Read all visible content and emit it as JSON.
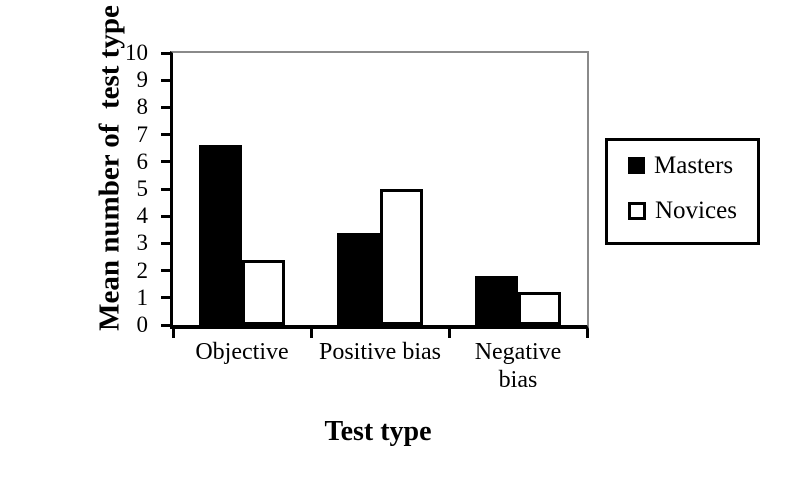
{
  "figure": {
    "background": "#ffffff",
    "frame_color": "#8a8a8a",
    "axis_color": "#000000",
    "bar_border_color": "#000000"
  },
  "chart_data": {
    "type": "bar",
    "xlabel": "Test type",
    "ylabel": "Mean number of  test type",
    "categories": [
      "Objective",
      "Positive bias",
      "Negative bias"
    ],
    "series": [
      {
        "name": "Masters",
        "fill": "#000000",
        "swatch": "filled-black-square",
        "values": [
          6.6,
          3.4,
          1.8
        ]
      },
      {
        "name": "Novices",
        "fill": "#ffffff",
        "swatch": "open-white-square",
        "values": [
          2.4,
          5.0,
          1.2
        ]
      }
    ],
    "ylim": [
      0,
      10
    ],
    "y_ticks": [
      0,
      1,
      2,
      3,
      4,
      5,
      6,
      7,
      8,
      9,
      10
    ],
    "grid": false,
    "legend_position": "right-outside"
  }
}
